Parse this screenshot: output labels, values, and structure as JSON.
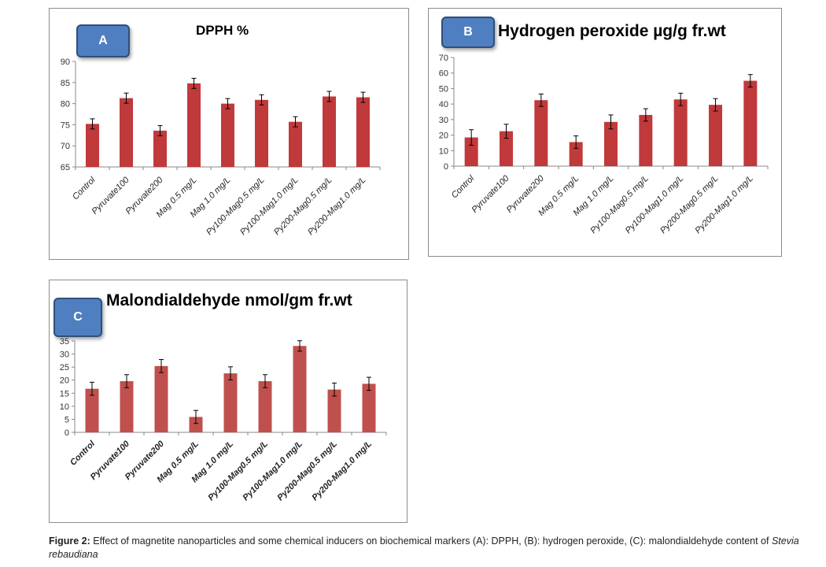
{
  "chart_data": [
    {
      "type": "bar",
      "panel_label": "A",
      "title": "DPPH %",
      "categories": [
        "Control",
        "Pyruvate100",
        "Pyruvate200",
        "Mag 0.5 mg/L",
        "Mag 1.0 mg/L",
        "Py100-Mag0.5 mg/L",
        "Py100-Mag1.0 mg/L",
        "Py200-Mag0.5 mg/L",
        "Py200-Mag1.0 mg/L"
      ],
      "values": [
        75.2,
        81.3,
        73.6,
        84.8,
        80.0,
        80.9,
        75.7,
        81.7,
        81.5
      ],
      "errors": [
        1.2,
        1.2,
        1.2,
        1.2,
        1.2,
        1.2,
        1.2,
        1.2,
        1.2
      ],
      "ylim": [
        65,
        90
      ],
      "yticks": [
        "65",
        "70",
        "75",
        "80",
        "85",
        "90"
      ],
      "bar_color": "#c0393b",
      "grid": false
    },
    {
      "type": "bar",
      "panel_label": "B",
      "title": "Hydrogen peroxide µg/g fr.wt",
      "categories": [
        "Control",
        "Pyruvate100",
        "Pyruvate200",
        "Mag 0.5 mg/L",
        "Mag 1.0 mg/L",
        "Py100-Mag0.5 mg/L",
        "Py100-Mag1.0 mg/L",
        "Py200-Mag0.5 mg/L",
        "Py200-Mag1.0 mg/L"
      ],
      "values": [
        18.5,
        22.5,
        42.5,
        15.5,
        28.5,
        33.0,
        43.0,
        39.5,
        55.0
      ],
      "errors": [
        5.0,
        4.5,
        4.0,
        4.0,
        4.5,
        4.0,
        4.0,
        4.0,
        4.0
      ],
      "ylim": [
        0,
        70
      ],
      "yticks": [
        "0",
        "10",
        "20",
        "30",
        "40",
        "50",
        "60",
        "70"
      ],
      "bar_color": "#c0393b",
      "grid": false
    },
    {
      "type": "bar",
      "panel_label": "C",
      "title": "Malondialdehyde nmol/gm fr.wt",
      "categories": [
        "Control",
        "Pyruvate100",
        "Pyruvate200",
        "Mag 0.5 mg/L",
        "Mag 1.0 mg/L",
        "Py100-Mag0.5 mg/L",
        "Py100-Mag1.0 mg/L",
        "Py200-Mag0.5 mg/L",
        "Py200-Mag1.0 mg/L"
      ],
      "values": [
        16.7,
        19.6,
        25.4,
        5.9,
        22.6,
        19.6,
        33.1,
        16.4,
        18.6
      ],
      "errors": [
        2.5,
        2.5,
        2.5,
        2.5,
        2.5,
        2.5,
        2.0,
        2.5,
        2.5
      ],
      "ylim": [
        0,
        35
      ],
      "yticks": [
        "0",
        "5",
        "10",
        "15",
        "20",
        "25",
        "30",
        "35"
      ],
      "bar_color": "#c0504d",
      "grid": false
    }
  ],
  "caption": {
    "label": "Figure 2:",
    "text": " Effect of magnetite nanoparticles and some chemical inducers on biochemical markers (A): DPPH, (B): hydrogen peroxide, (C): malondialdehyde content of ",
    "species": "Stevia rebaudiana"
  }
}
